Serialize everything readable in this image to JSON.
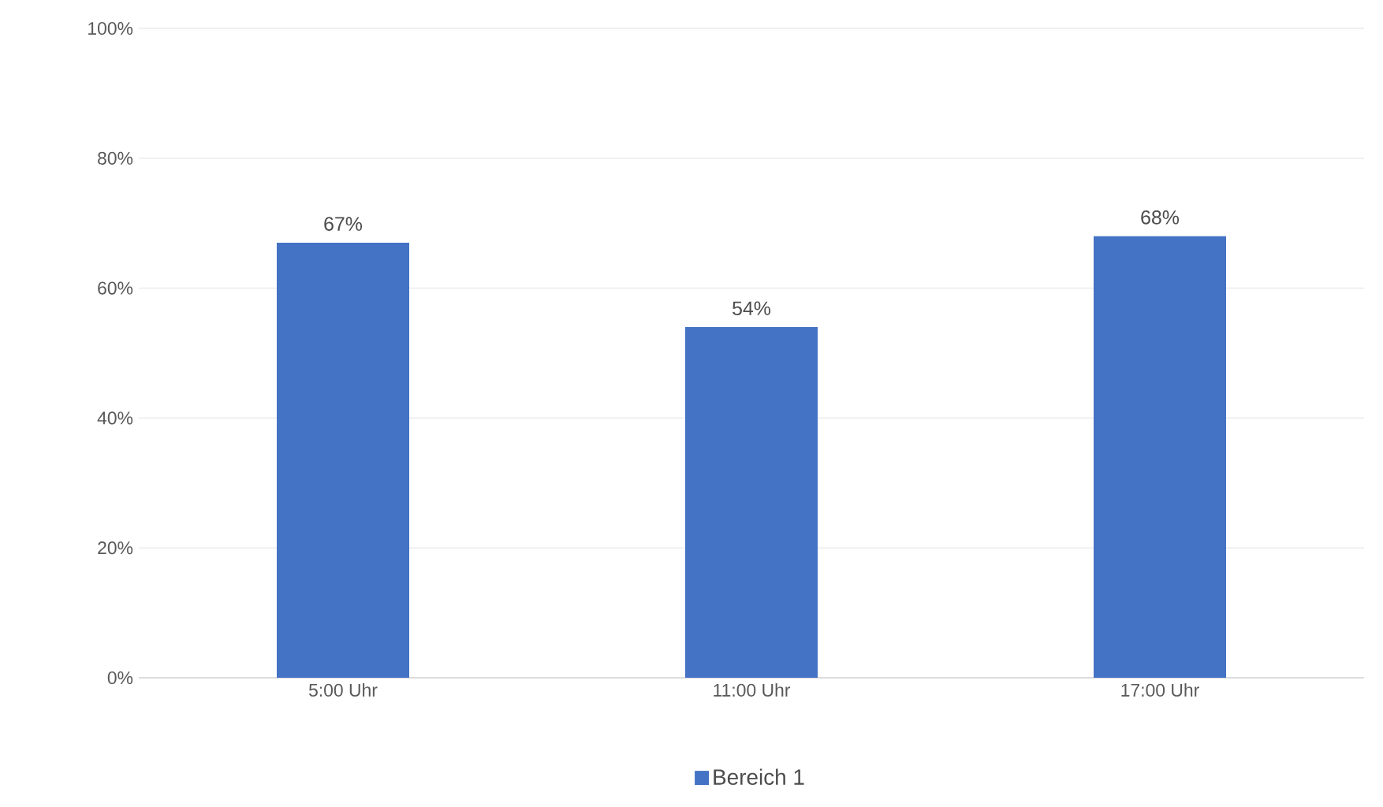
{
  "chart_data": {
    "type": "bar",
    "categories": [
      "5:00 Uhr",
      "11:00 Uhr",
      "17:00 Uhr"
    ],
    "series": [
      {
        "name": "Bereich 1",
        "color": "#4472c4",
        "values": [
          67,
          54,
          68
        ],
        "value_labels": [
          "67%",
          "54%",
          "68%"
        ]
      }
    ],
    "ylim": [
      0,
      100
    ],
    "yticks": [
      {
        "value": 0,
        "label": "0%"
      },
      {
        "value": 20,
        "label": "20%"
      },
      {
        "value": 40,
        "label": "40%"
      },
      {
        "value": 60,
        "label": "60%"
      },
      {
        "value": 80,
        "label": "80%"
      },
      {
        "value": 100,
        "label": "100%"
      }
    ],
    "grid": "y",
    "legend": "bottom"
  }
}
